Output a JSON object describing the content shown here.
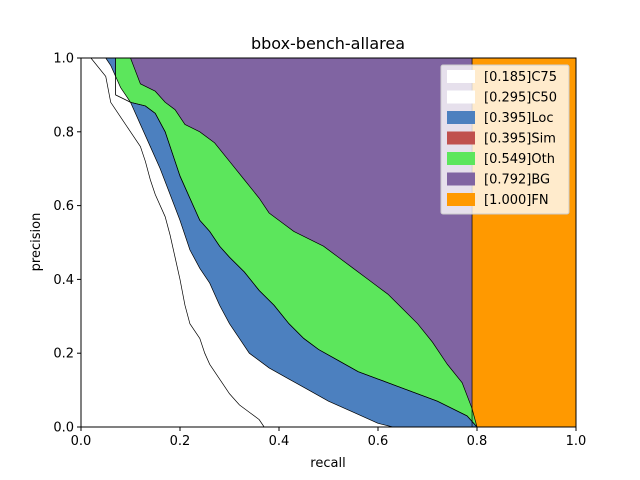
{
  "chart_data": {
    "type": "area",
    "title": "bbox-bench-allarea",
    "xlabel": "recall",
    "ylabel": "precision",
    "xlim": [
      0,
      1
    ],
    "ylim": [
      0,
      1
    ],
    "xticks": [
      "0.0",
      "0.2",
      "0.4",
      "0.6",
      "0.8",
      "1.0"
    ],
    "yticks": [
      "0.0",
      "0.2",
      "0.4",
      "0.6",
      "0.8",
      "1.0"
    ],
    "grid": false,
    "legend_position": "top-right",
    "series": [
      {
        "name": "[0.185]C75",
        "color": "#ffffff",
        "points": [
          [
            0.0,
            1.0
          ],
          [
            0.02,
            1.0
          ],
          [
            0.05,
            0.95
          ],
          [
            0.06,
            0.88
          ],
          [
            0.08,
            0.84
          ],
          [
            0.1,
            0.8
          ],
          [
            0.12,
            0.76
          ],
          [
            0.13,
            0.72
          ],
          [
            0.14,
            0.67
          ],
          [
            0.15,
            0.63
          ],
          [
            0.17,
            0.57
          ],
          [
            0.18,
            0.52
          ],
          [
            0.19,
            0.46
          ],
          [
            0.2,
            0.4
          ],
          [
            0.21,
            0.33
          ],
          [
            0.22,
            0.28
          ],
          [
            0.24,
            0.24
          ],
          [
            0.25,
            0.2
          ],
          [
            0.26,
            0.17
          ],
          [
            0.28,
            0.13
          ],
          [
            0.3,
            0.09
          ],
          [
            0.32,
            0.06
          ],
          [
            0.34,
            0.04
          ],
          [
            0.36,
            0.02
          ],
          [
            0.37,
            0.0
          ]
        ]
      },
      {
        "name": "[0.295]C50",
        "color": "#ffffff",
        "points": [
          [
            0.0,
            1.0
          ],
          [
            0.05,
            1.0
          ],
          [
            0.06,
            0.98
          ],
          [
            0.08,
            0.92
          ],
          [
            0.1,
            0.88
          ],
          [
            0.12,
            0.82
          ],
          [
            0.14,
            0.76
          ],
          [
            0.16,
            0.7
          ],
          [
            0.18,
            0.63
          ],
          [
            0.2,
            0.56
          ],
          [
            0.21,
            0.52
          ],
          [
            0.22,
            0.48
          ],
          [
            0.24,
            0.43
          ],
          [
            0.26,
            0.39
          ],
          [
            0.28,
            0.33
          ],
          [
            0.3,
            0.28
          ],
          [
            0.32,
            0.24
          ],
          [
            0.34,
            0.2
          ],
          [
            0.38,
            0.16
          ],
          [
            0.42,
            0.13
          ],
          [
            0.46,
            0.1
          ],
          [
            0.5,
            0.07
          ],
          [
            0.55,
            0.04
          ],
          [
            0.6,
            0.01
          ],
          [
            0.63,
            0.0
          ]
        ]
      },
      {
        "name": "[0.395]Loc",
        "color": "#4c80bf",
        "points": [
          [
            0.0,
            1.0
          ],
          [
            0.07,
            1.0
          ],
          [
            0.07,
            0.9
          ],
          [
            0.1,
            0.88
          ],
          [
            0.13,
            0.87
          ],
          [
            0.15,
            0.85
          ],
          [
            0.17,
            0.8
          ],
          [
            0.19,
            0.72
          ],
          [
            0.2,
            0.68
          ],
          [
            0.22,
            0.62
          ],
          [
            0.24,
            0.56
          ],
          [
            0.26,
            0.53
          ],
          [
            0.28,
            0.49
          ],
          [
            0.3,
            0.46
          ],
          [
            0.33,
            0.42
          ],
          [
            0.36,
            0.37
          ],
          [
            0.39,
            0.33
          ],
          [
            0.42,
            0.28
          ],
          [
            0.45,
            0.24
          ],
          [
            0.48,
            0.21
          ],
          [
            0.52,
            0.18
          ],
          [
            0.56,
            0.15
          ],
          [
            0.6,
            0.13
          ],
          [
            0.64,
            0.11
          ],
          [
            0.68,
            0.09
          ],
          [
            0.72,
            0.07
          ],
          [
            0.75,
            0.05
          ],
          [
            0.78,
            0.03
          ],
          [
            0.8,
            0.0
          ]
        ]
      },
      {
        "name": "[0.395]Sim",
        "color": "#c0504d",
        "points": [
          [
            0.0,
            1.0
          ],
          [
            0.07,
            1.0
          ],
          [
            0.07,
            0.9
          ],
          [
            0.1,
            0.88
          ],
          [
            0.13,
            0.87
          ],
          [
            0.15,
            0.85
          ],
          [
            0.17,
            0.8
          ],
          [
            0.19,
            0.72
          ],
          [
            0.2,
            0.68
          ],
          [
            0.22,
            0.62
          ],
          [
            0.24,
            0.56
          ],
          [
            0.26,
            0.53
          ],
          [
            0.28,
            0.49
          ],
          [
            0.3,
            0.46
          ],
          [
            0.33,
            0.42
          ],
          [
            0.36,
            0.37
          ],
          [
            0.39,
            0.33
          ],
          [
            0.42,
            0.28
          ],
          [
            0.45,
            0.24
          ],
          [
            0.48,
            0.21
          ],
          [
            0.52,
            0.18
          ],
          [
            0.56,
            0.15
          ],
          [
            0.6,
            0.13
          ],
          [
            0.64,
            0.11
          ],
          [
            0.68,
            0.09
          ],
          [
            0.72,
            0.07
          ],
          [
            0.75,
            0.05
          ],
          [
            0.78,
            0.03
          ],
          [
            0.8,
            0.0
          ]
        ]
      },
      {
        "name": "[0.549]Oth",
        "color": "#5ce65c",
        "points": [
          [
            0.0,
            1.0
          ],
          [
            0.1,
            1.0
          ],
          [
            0.12,
            0.93
          ],
          [
            0.15,
            0.91
          ],
          [
            0.17,
            0.88
          ],
          [
            0.19,
            0.86
          ],
          [
            0.21,
            0.82
          ],
          [
            0.24,
            0.8
          ],
          [
            0.27,
            0.77
          ],
          [
            0.3,
            0.72
          ],
          [
            0.33,
            0.67
          ],
          [
            0.36,
            0.62
          ],
          [
            0.38,
            0.58
          ],
          [
            0.4,
            0.56
          ],
          [
            0.43,
            0.53
          ],
          [
            0.46,
            0.51
          ],
          [
            0.49,
            0.49
          ],
          [
            0.52,
            0.46
          ],
          [
            0.55,
            0.43
          ],
          [
            0.58,
            0.4
          ],
          [
            0.62,
            0.36
          ],
          [
            0.65,
            0.32
          ],
          [
            0.68,
            0.28
          ],
          [
            0.71,
            0.23
          ],
          [
            0.74,
            0.17
          ],
          [
            0.77,
            0.12
          ],
          [
            0.79,
            0.05
          ],
          [
            0.8,
            0.0
          ]
        ]
      },
      {
        "name": "[0.792]BG",
        "color": "#8064a2",
        "points": [
          [
            0.0,
            1.0
          ],
          [
            0.79,
            1.0
          ],
          [
            0.79,
            0.0
          ]
        ]
      },
      {
        "name": "[1.000]FN",
        "color": "#ff9900",
        "points": [
          [
            0.0,
            1.0
          ],
          [
            1.0,
            1.0
          ],
          [
            1.0,
            0.0
          ]
        ]
      }
    ]
  }
}
